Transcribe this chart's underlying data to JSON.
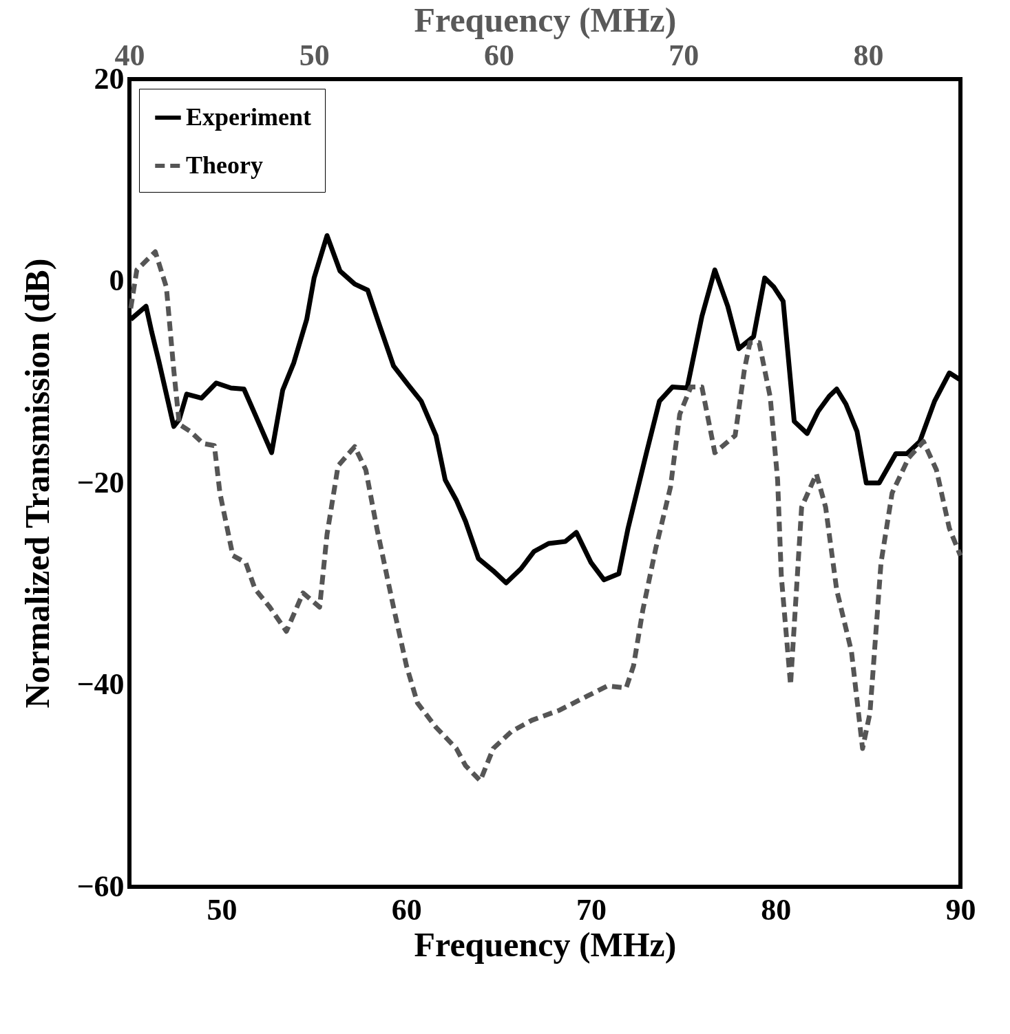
{
  "chart_data": {
    "type": "line",
    "xlabel": "Frequency (MHz)",
    "x2label": "Frequency (MHz)",
    "ylabel": "Normalized  Transmission (dB)",
    "xlim": [
      45,
      90
    ],
    "xticks": [
      50,
      60,
      70,
      80,
      90
    ],
    "x2lim": [
      40,
      85
    ],
    "x2ticks": [
      40,
      50,
      60,
      70,
      80
    ],
    "ylim": [
      -60,
      20
    ],
    "yticks": [
      -60,
      -40,
      -20,
      0,
      20
    ],
    "grid": false,
    "legend": "top left",
    "marker": "none",
    "series": [
      {
        "name": "Experiment",
        "color": "#000000",
        "line_style": "solid",
        "x": [
          45.07,
          45.9,
          46.2,
          46.6,
          47.4,
          47.7,
          48.1,
          48.9,
          49.7,
          50.5,
          51.2,
          51.8,
          52.7,
          53.3,
          53.9,
          54.6,
          55.0,
          55.7,
          56.4,
          57.2,
          57.9,
          58.6,
          59.3,
          60.1,
          60.8,
          61.6,
          62.1,
          62.7,
          63.2,
          63.9,
          64.7,
          65.4,
          66.2,
          66.9,
          67.7,
          68.6,
          69.2,
          70.0,
          70.7,
          71.5,
          72.0,
          73.0,
          73.7,
          74.4,
          75.2,
          76.0,
          76.7,
          77.4,
          78.0,
          78.8,
          79.4,
          79.9,
          80.4,
          81.0,
          81.7,
          82.3,
          82.9,
          83.3,
          83.8,
          84.4,
          84.9,
          85.6,
          86.5,
          87.1,
          87.8,
          88.6,
          89.4,
          90.0
        ],
        "values": [
          -3.8,
          -2.5,
          -5,
          -8,
          -14.4,
          -13.7,
          -11.2,
          -11.6,
          -10.1,
          -10.6,
          -10.7,
          -13.2,
          -17,
          -10.8,
          -8.1,
          -3.8,
          0.3,
          4.5,
          1.0,
          -0.3,
          -0.9,
          -4.7,
          -8.4,
          -10.3,
          -11.9,
          -15.3,
          -19.7,
          -21.7,
          -23.8,
          -27.5,
          -28.7,
          -29.9,
          -28.5,
          -26.8,
          -26,
          -25.8,
          -24.9,
          -27.9,
          -29.6,
          -29,
          -24.5,
          -17,
          -11.9,
          -10.5,
          -10.6,
          -3.5,
          1.1,
          -2.5,
          -6.7,
          -5.5,
          0.3,
          -0.6,
          -2.0,
          -13.9,
          -15.1,
          -12.9,
          -11.4,
          -10.7,
          -12.2,
          -14.9,
          -20,
          -20,
          -17.1,
          -17.1,
          -15.9,
          -11.9,
          -9.1,
          -9.8
        ]
      },
      {
        "name": "Theory",
        "color": "#555555",
        "line_style": "dashed",
        "x": [
          45.07,
          45.4,
          46.4,
          47.0,
          47.4,
          47.7,
          48.3,
          49.0,
          49.6,
          49.9,
          50.6,
          51.3,
          51.8,
          52.6,
          53.5,
          54.4,
          55.3,
          55.7,
          56.3,
          57.2,
          57.8,
          58.4,
          59.3,
          60.0,
          60.6,
          61.6,
          62.7,
          63.2,
          64.0,
          64.7,
          65.7,
          66.8,
          68.3,
          69.8,
          70.9,
          71.9,
          72.3,
          72.8,
          73.5,
          74.3,
          74.8,
          75.4,
          76.0,
          76.7,
          77.8,
          78.3,
          78.6,
          79.1,
          79.7,
          80.1,
          80.3,
          80.8,
          81.4,
          82.2,
          82.7,
          83.3,
          84.1,
          84.7,
          85.1,
          85.7,
          86.3,
          87.2,
          88.0,
          88.7,
          89.4,
          90.0
        ],
        "values": [
          -2.7,
          1.1,
          2.9,
          -0.6,
          -8.8,
          -14.2,
          -14.9,
          -16.1,
          -16.3,
          -21,
          -27.2,
          -27.9,
          -30.5,
          -32.3,
          -34.7,
          -30.9,
          -32.3,
          -25.1,
          -18.3,
          -16.4,
          -18.7,
          -24.5,
          -32.3,
          -38.1,
          -41.8,
          -44.2,
          -46.3,
          -48,
          -49.5,
          -46.3,
          -44.6,
          -43.5,
          -42.5,
          -41.1,
          -40.1,
          -40.3,
          -38.1,
          -32.6,
          -26.5,
          -20.4,
          -13.2,
          -10.5,
          -10.5,
          -17,
          -15.3,
          -8.8,
          -6.1,
          -6.1,
          -11.5,
          -19.7,
          -29.2,
          -40.0,
          -22.4,
          -19.1,
          -22.4,
          -30.6,
          -36.7,
          -46.3,
          -42.8,
          -27.9,
          -21,
          -17.5,
          -15.9,
          -18.7,
          -24.5,
          -27.2
        ]
      }
    ]
  }
}
